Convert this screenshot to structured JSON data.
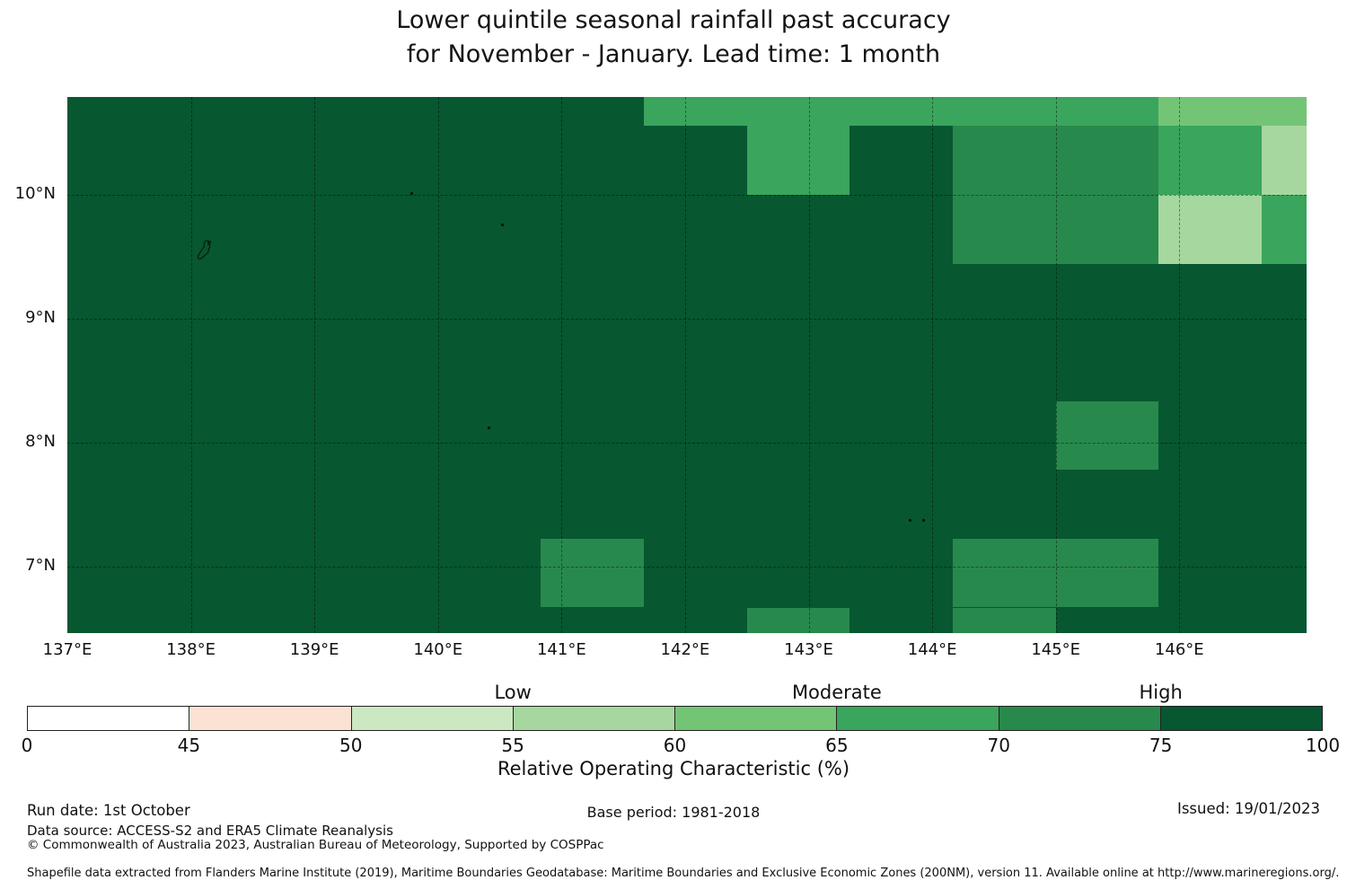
{
  "title": {
    "line1": "Lower quintile seasonal rainfall past accuracy",
    "line2": "for November - January. Lead time: 1 month"
  },
  "footer": {
    "run_date": "Run date: 1st October",
    "data_source": "Data source: ACCESS-S2 and ERA5 Climate Reanalysis",
    "copyright": "© Commonwealth of Australia 2023, Australian Bureau of Meteorology, Supported by COSPPac",
    "base_period": "Base period: 1981-2018",
    "issued": "Issued: 19/01/2023",
    "shapefile_note": "Shapefile data extracted from Flanders Marine Institute (2019), Maritime Boundaries Geodatabase: Maritime Boundaries and Exclusive Economic Zones (200NM), version 11. Available online at http://www.marineregions.org/."
  },
  "chart_data": {
    "type": "heatmap",
    "title": "Lower quintile seasonal rainfall past accuracy for November - January. Lead time: 1 month",
    "value_name": "Relative Operating Characteristic (%)",
    "lon_min": 137.0,
    "lon_max": 147.03,
    "lat_min": 6.46,
    "lat_max": 10.79,
    "cell_dlon": 0.8333,
    "cell_dlat": 0.5556,
    "grid_on": true,
    "grid_lons": [
      138,
      139,
      140,
      141,
      142,
      143,
      144,
      145,
      146
    ],
    "grid_lats": [
      7,
      8,
      9,
      10
    ],
    "x_ticks": [
      {
        "lon": 137,
        "label": "137°E"
      },
      {
        "lon": 138,
        "label": "138°E"
      },
      {
        "lon": 139,
        "label": "139°E"
      },
      {
        "lon": 140,
        "label": "140°E"
      },
      {
        "lon": 141,
        "label": "141°E"
      },
      {
        "lon": 142,
        "label": "142°E"
      },
      {
        "lon": 143,
        "label": "143°E"
      },
      {
        "lon": 144,
        "label": "144°E"
      },
      {
        "lon": 145,
        "label": "145°E"
      },
      {
        "lon": 146,
        "label": "146°E"
      }
    ],
    "y_ticks": [
      {
        "lat": 10,
        "label": "10°N"
      },
      {
        "lat": 9,
        "label": "9°N"
      },
      {
        "lat": 8,
        "label": "8°N"
      },
      {
        "lat": 7,
        "label": "7°N"
      }
    ],
    "background_bin": "75-100",
    "cells": [
      {
        "lon0": 141.6667,
        "lon1": 142.5,
        "lat0": 10.5556,
        "lat1": 10.79,
        "bin": "65-70"
      },
      {
        "lon0": 142.5,
        "lon1": 143.3333,
        "lat0": 10.5556,
        "lat1": 10.79,
        "bin": "65-70"
      },
      {
        "lon0": 143.3333,
        "lon1": 144.1667,
        "lat0": 10.5556,
        "lat1": 10.79,
        "bin": "65-70"
      },
      {
        "lon0": 144.1667,
        "lon1": 145.0,
        "lat0": 10.5556,
        "lat1": 10.79,
        "bin": "65-70"
      },
      {
        "lon0": 145.0,
        "lon1": 145.8333,
        "lat0": 10.5556,
        "lat1": 10.79,
        "bin": "65-70"
      },
      {
        "lon0": 145.8333,
        "lon1": 146.6667,
        "lat0": 10.5556,
        "lat1": 10.79,
        "bin": "60-65"
      },
      {
        "lon0": 146.6667,
        "lon1": 147.03,
        "lat0": 10.5556,
        "lat1": 10.79,
        "bin": "60-65"
      },
      {
        "lon0": 142.5,
        "lon1": 143.3333,
        "lat0": 10.0,
        "lat1": 10.5556,
        "bin": "65-70"
      },
      {
        "lon0": 144.1667,
        "lon1": 145.0,
        "lat0": 10.0,
        "lat1": 10.5556,
        "bin": "70-75"
      },
      {
        "lon0": 145.0,
        "lon1": 145.8333,
        "lat0": 10.0,
        "lat1": 10.5556,
        "bin": "70-75"
      },
      {
        "lon0": 145.8333,
        "lon1": 146.6667,
        "lat0": 10.0,
        "lat1": 10.5556,
        "bin": "65-70"
      },
      {
        "lon0": 146.6667,
        "lon1": 147.03,
        "lat0": 10.0,
        "lat1": 10.5556,
        "bin": "55-60"
      },
      {
        "lon0": 144.1667,
        "lon1": 145.0,
        "lat0": 9.4444,
        "lat1": 10.0,
        "bin": "70-75"
      },
      {
        "lon0": 145.0,
        "lon1": 145.8333,
        "lat0": 9.4444,
        "lat1": 10.0,
        "bin": "70-75"
      },
      {
        "lon0": 145.8333,
        "lon1": 146.6667,
        "lat0": 9.4444,
        "lat1": 10.0,
        "bin": "55-60"
      },
      {
        "lon0": 146.6667,
        "lon1": 147.03,
        "lat0": 9.4444,
        "lat1": 10.0,
        "bin": "65-70"
      },
      {
        "lon0": 145.0,
        "lon1": 145.8333,
        "lat0": 7.7778,
        "lat1": 8.3333,
        "bin": "70-75"
      },
      {
        "lon0": 140.8333,
        "lon1": 141.6667,
        "lat0": 6.6667,
        "lat1": 7.2222,
        "bin": "70-75"
      },
      {
        "lon0": 144.1667,
        "lon1": 145.0,
        "lat0": 6.6667,
        "lat1": 7.2222,
        "bin": "70-75"
      },
      {
        "lon0": 145.0,
        "lon1": 145.8333,
        "lat0": 6.6667,
        "lat1": 7.2222,
        "bin": "70-75"
      },
      {
        "lon0": 142.5,
        "lon1": 143.3333,
        "lat0": 6.46,
        "lat1": 6.6667,
        "bin": "70-75"
      },
      {
        "lon0": 144.1667,
        "lon1": 145.0,
        "lat0": 6.46,
        "lat1": 6.6667,
        "bin": "70-75"
      }
    ],
    "islands": [
      {
        "lon": 138.12,
        "lat": 9.53,
        "kind": "outline"
      },
      {
        "lon": 139.79,
        "lat": 10.01,
        "kind": "dot"
      },
      {
        "lon": 140.52,
        "lat": 9.76,
        "kind": "dot"
      },
      {
        "lon": 140.41,
        "lat": 8.12,
        "kind": "dot"
      },
      {
        "lon": 143.82,
        "lat": 7.37,
        "kind": "dot"
      },
      {
        "lon": 143.93,
        "lat": 7.37,
        "kind": "dot"
      }
    ],
    "colorbar": {
      "bins": [
        {
          "range": "0-45",
          "color": "#ffffff"
        },
        {
          "range": "45-50",
          "color": "#fbe2d3"
        },
        {
          "range": "50-55",
          "color": "#cbe8c1"
        },
        {
          "range": "55-60",
          "color": "#a6d79e"
        },
        {
          "range": "60-65",
          "color": "#74c476"
        },
        {
          "range": "65-70",
          "color": "#3aa55c"
        },
        {
          "range": "70-75",
          "color": "#28894c"
        },
        {
          "range": "75-100",
          "color": "#075731"
        }
      ],
      "ticks": [
        "0",
        "45",
        "50",
        "55",
        "60",
        "65",
        "70",
        "75",
        "100"
      ],
      "headers": [
        {
          "text": "Low",
          "tick_index": 3
        },
        {
          "text": "Moderate",
          "tick_index": 5
        },
        {
          "text": "High",
          "tick_index": 7
        }
      ],
      "xlabel": "Relative Operating Characteristic (%)"
    }
  }
}
